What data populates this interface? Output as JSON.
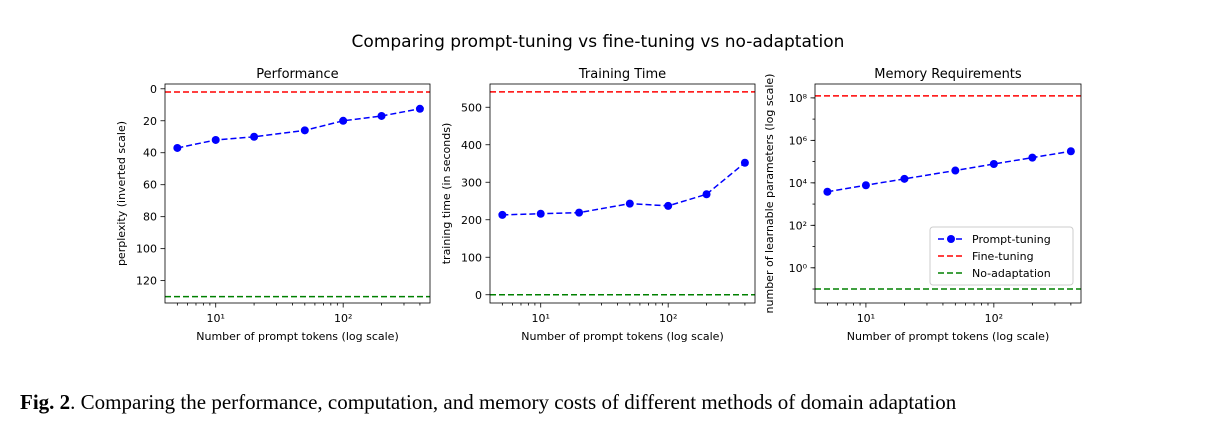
{
  "figure": {
    "suptitle": "Comparing prompt-tuning vs fine-tuning vs no-adaptation",
    "caption_label": "Fig. 2",
    "caption_text": ". Comparing the performance, computation, and memory costs of different methods of domain adaptation"
  },
  "colors": {
    "prompt_tuning": "#0000ff",
    "fine_tuning": "#ff0000",
    "no_adaptation": "#008000"
  },
  "chart_data": [
    {
      "type": "line",
      "title": "Performance",
      "xlabel": "Number of prompt tokens (log scale)",
      "ylabel": "perplexity (inverted scale)",
      "xscale": "log",
      "y_inverted": true,
      "xlim": [
        4,
        480
      ],
      "ylim": [
        134,
        -3
      ],
      "yticks": [
        0,
        20,
        40,
        60,
        80,
        100,
        120
      ],
      "xticks": [
        10,
        100
      ],
      "series": [
        {
          "name": "Prompt-tuning",
          "style": "dashed-marker",
          "x": [
            5,
            10,
            20,
            50,
            100,
            200,
            400
          ],
          "y": [
            37,
            32,
            30,
            26,
            20,
            17,
            12.5
          ]
        },
        {
          "name": "Fine-tuning",
          "style": "hline-dashed",
          "y": 2
        },
        {
          "name": "No-adaptation",
          "style": "hline-dashed",
          "y": 130
        }
      ]
    },
    {
      "type": "line",
      "title": "Training Time",
      "xlabel": "Number of prompt tokens (log scale)",
      "ylabel": "training time (in seconds)",
      "xscale": "log",
      "xlim": [
        4,
        480
      ],
      "ylim": [
        -22,
        562
      ],
      "yticks": [
        0,
        100,
        200,
        300,
        400,
        500
      ],
      "xticks": [
        10,
        100
      ],
      "series": [
        {
          "name": "Prompt-tuning",
          "style": "dashed-marker",
          "x": [
            5,
            10,
            20,
            50,
            100,
            200,
            400
          ],
          "y": [
            213,
            216,
            219,
            243,
            237,
            268,
            352
          ]
        },
        {
          "name": "Fine-tuning",
          "style": "hline-dashed",
          "y": 541
        },
        {
          "name": "No-adaptation",
          "style": "hline-dashed",
          "y": 0
        }
      ]
    },
    {
      "type": "line",
      "title": "Memory Requirements",
      "xlabel": "Number of prompt tokens (log scale)",
      "ylabel": "number of learnable parameters (log scale)",
      "xscale": "log",
      "yscale": "log",
      "xlim": [
        4,
        480
      ],
      "ylim": [
        0.022,
        450000000
      ],
      "yticks": [
        1,
        100,
        10000,
        1000000,
        100000000
      ],
      "xticks": [
        10,
        100
      ],
      "legend": "lower-right",
      "series": [
        {
          "name": "Prompt-tuning",
          "style": "dashed-marker",
          "x": [
            5,
            10,
            20,
            50,
            100,
            200,
            400
          ],
          "y": [
            3800,
            7700,
            15400,
            38000,
            77000,
            154000,
            307000
          ]
        },
        {
          "name": "Fine-tuning",
          "style": "hline-dashed",
          "y": 125000000
        },
        {
          "name": "No-adaptation",
          "style": "hline-dashed",
          "y": 0.1
        }
      ]
    }
  ]
}
